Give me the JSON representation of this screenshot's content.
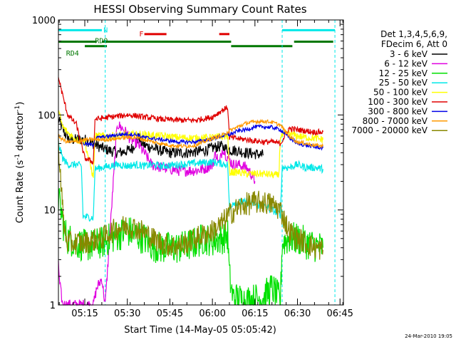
{
  "chart_data": {
    "type": "line",
    "title": "HESSI Observing Summary Count Rates",
    "xlabel": "Start Time (14-May-05 05:05:42)",
    "ylabel": "Count Rate (s⁻¹ detector⁻¹)",
    "ylabel_main": "Count Rate (s",
    "ylabel_sup1": "-1",
    "ylabel_mid": " detector",
    "ylabel_sup2": "-1",
    "ylabel_end": ")",
    "y_scale": "log",
    "ylim": [
      1,
      1000
    ],
    "xlim": [
      5.095,
      6.77
    ],
    "x_ticks": [
      {
        "t": 5.25,
        "label": "05:15"
      },
      {
        "t": 5.5,
        "label": "05:30"
      },
      {
        "t": 5.75,
        "label": "05:45"
      },
      {
        "t": 6.0,
        "label": "06:00"
      },
      {
        "t": 6.25,
        "label": "06:15"
      },
      {
        "t": 6.5,
        "label": "06:30"
      },
      {
        "t": 6.75,
        "label": "06:45"
      }
    ],
    "y_ticks": [
      {
        "v": 1,
        "label": "1"
      },
      {
        "v": 10,
        "label": "10"
      },
      {
        "v": 100,
        "label": "100"
      },
      {
        "v": 1000,
        "label": "1000"
      }
    ],
    "legend": {
      "header1": "Det 1,3,4,5,6,9,",
      "header2": "FDecim 6, Att 0",
      "placement": "right"
    },
    "series": [
      {
        "name": "3 - 6 keV",
        "color": "#000000",
        "values": [
          [
            5.095,
            90
          ],
          [
            5.13,
            65
          ],
          [
            5.16,
            55
          ],
          [
            5.2,
            55
          ],
          [
            5.25,
            55
          ],
          [
            5.3,
            50
          ],
          [
            5.35,
            45
          ],
          [
            5.4,
            42
          ],
          [
            5.45,
            40
          ],
          [
            5.5,
            42
          ],
          [
            5.53,
            45
          ],
          [
            5.55,
            52
          ],
          [
            5.57,
            58
          ],
          [
            5.58,
            52
          ],
          [
            5.6,
            48
          ],
          [
            5.65,
            45
          ],
          [
            5.7,
            42
          ],
          [
            5.75,
            40
          ],
          [
            5.8,
            40
          ],
          [
            5.85,
            40
          ],
          [
            5.9,
            41
          ],
          [
            5.95,
            42
          ],
          [
            6.0,
            45
          ],
          [
            6.05,
            47
          ],
          [
            6.07,
            45
          ],
          [
            6.1,
            43
          ],
          [
            6.15,
            42
          ],
          [
            6.2,
            40
          ],
          [
            6.25,
            39
          ],
          [
            6.3,
            38
          ]
        ]
      },
      {
        "name": "6 - 12 keV",
        "color": "#e000e0",
        "values": [
          [
            5.095,
            3
          ],
          [
            5.1,
            1.8
          ],
          [
            5.12,
            1
          ],
          [
            5.3,
            1
          ],
          [
            5.32,
            1.5
          ],
          [
            5.35,
            1.9
          ],
          [
            5.37,
            1
          ],
          [
            5.44,
            80
          ],
          [
            5.48,
            70
          ],
          [
            5.52,
            55
          ],
          [
            5.56,
            50
          ],
          [
            5.6,
            40
          ],
          [
            5.62,
            35
          ],
          [
            5.64,
            30
          ],
          [
            5.7,
            28
          ],
          [
            5.8,
            26
          ],
          [
            5.9,
            26
          ],
          [
            5.95,
            27
          ],
          [
            6.0,
            30
          ],
          [
            6.02,
            40
          ],
          [
            6.04,
            30
          ],
          [
            6.06,
            45
          ],
          [
            6.08,
            38
          ],
          [
            6.12,
            30
          ],
          [
            6.15,
            30
          ],
          [
            6.2,
            28
          ],
          [
            6.22,
            25
          ],
          [
            6.24,
            22
          ],
          [
            6.25,
            20
          ]
        ]
      },
      {
        "name": "12 - 25 keV",
        "color": "#00e000",
        "values": [
          [
            5.095,
            13
          ],
          [
            5.11,
            10
          ],
          [
            5.13,
            6
          ],
          [
            5.15,
            5
          ],
          [
            5.2,
            4.5
          ],
          [
            5.25,
            4.2
          ],
          [
            5.3,
            4.3
          ],
          [
            5.35,
            4.5
          ],
          [
            5.4,
            5
          ],
          [
            5.45,
            5.5
          ],
          [
            5.5,
            6
          ],
          [
            5.55,
            5.5
          ],
          [
            5.6,
            5
          ],
          [
            5.65,
            4.2
          ],
          [
            5.7,
            4
          ],
          [
            5.75,
            4
          ],
          [
            5.8,
            4
          ],
          [
            5.85,
            4.2
          ],
          [
            5.9,
            4.5
          ],
          [
            5.95,
            5
          ],
          [
            6.0,
            4.8
          ],
          [
            6.05,
            5
          ],
          [
            6.09,
            5.5
          ],
          [
            6.1,
            2
          ],
          [
            6.12,
            1.2
          ],
          [
            6.2,
            1.1
          ],
          [
            6.3,
            1.2
          ],
          [
            6.35,
            1.5
          ],
          [
            6.4,
            1.1
          ],
          [
            6.41,
            4.5
          ],
          [
            6.45,
            5
          ],
          [
            6.5,
            5
          ],
          [
            6.55,
            4.5
          ],
          [
            6.6,
            4.2
          ],
          [
            6.65,
            4
          ]
        ]
      },
      {
        "name": "25 - 50 keV",
        "color": "#00e8e8",
        "values": [
          [
            5.095,
            50
          ],
          [
            5.12,
            35
          ],
          [
            5.15,
            30
          ],
          [
            5.2,
            30
          ],
          [
            5.23,
            29
          ],
          [
            5.24,
            8.5
          ],
          [
            5.3,
            8.3
          ],
          [
            5.31,
            27
          ],
          [
            5.35,
            28
          ],
          [
            5.4,
            29
          ],
          [
            5.45,
            30
          ],
          [
            5.5,
            29
          ],
          [
            5.55,
            30
          ],
          [
            5.6,
            29
          ],
          [
            5.65,
            30
          ],
          [
            5.7,
            29
          ],
          [
            5.8,
            30
          ],
          [
            5.9,
            31
          ],
          [
            6.0,
            32
          ],
          [
            6.09,
            30
          ],
          [
            6.1,
            10
          ],
          [
            6.12,
            12
          ],
          [
            6.2,
            12
          ],
          [
            6.3,
            11
          ],
          [
            6.35,
            10
          ],
          [
            6.4,
            9
          ],
          [
            6.41,
            28
          ],
          [
            6.45,
            28
          ],
          [
            6.5,
            30
          ],
          [
            6.55,
            28
          ],
          [
            6.6,
            28
          ],
          [
            6.65,
            27
          ]
        ]
      },
      {
        "name": "50 - 100 keV",
        "color": "#ffff00",
        "values": [
          [
            5.095,
            110
          ],
          [
            5.12,
            75
          ],
          [
            5.15,
            65
          ],
          [
            5.2,
            55
          ],
          [
            5.25,
            52
          ],
          [
            5.3,
            22
          ],
          [
            5.31,
            60
          ],
          [
            5.4,
            60
          ],
          [
            5.5,
            62
          ],
          [
            5.6,
            62
          ],
          [
            5.7,
            60
          ],
          [
            5.8,
            58
          ],
          [
            5.9,
            57
          ],
          [
            6.0,
            58
          ],
          [
            6.09,
            60
          ],
          [
            6.1,
            25
          ],
          [
            6.15,
            25
          ],
          [
            6.2,
            24
          ],
          [
            6.3,
            24
          ],
          [
            6.39,
            23
          ],
          [
            6.4,
            60
          ],
          [
            6.45,
            64
          ],
          [
            6.5,
            60
          ],
          [
            6.55,
            58
          ],
          [
            6.6,
            57
          ],
          [
            6.65,
            55
          ]
        ]
      },
      {
        "name": "100 - 300 keV",
        "color": "#e00000",
        "values": [
          [
            5.095,
            250
          ],
          [
            5.12,
            160
          ],
          [
            5.15,
            100
          ],
          [
            5.2,
            80
          ],
          [
            5.25,
            35
          ],
          [
            5.3,
            32
          ],
          [
            5.31,
            90
          ],
          [
            5.4,
            95
          ],
          [
            5.5,
            100
          ],
          [
            5.55,
            98
          ],
          [
            5.6,
            95
          ],
          [
            5.7,
            90
          ],
          [
            5.8,
            88
          ],
          [
            5.9,
            88
          ],
          [
            6.0,
            95
          ],
          [
            6.05,
            110
          ],
          [
            6.09,
            120
          ],
          [
            6.1,
            58
          ],
          [
            6.2,
            55
          ],
          [
            6.3,
            52
          ],
          [
            6.35,
            52
          ],
          [
            6.4,
            50
          ],
          [
            6.45,
            72
          ],
          [
            6.5,
            70
          ],
          [
            6.55,
            68
          ],
          [
            6.6,
            66
          ],
          [
            6.65,
            66
          ]
        ]
      },
      {
        "name": "300 - 800 keV",
        "color": "#0000e8",
        "values": [
          [
            5.24,
            50
          ],
          [
            5.3,
            48
          ],
          [
            5.31,
            57
          ],
          [
            5.4,
            60
          ],
          [
            5.45,
            62
          ],
          [
            5.5,
            63
          ],
          [
            5.55,
            62
          ],
          [
            5.6,
            58
          ],
          [
            5.7,
            55
          ],
          [
            5.8,
            52
          ],
          [
            5.9,
            52
          ],
          [
            6.0,
            56
          ],
          [
            6.05,
            60
          ],
          [
            6.1,
            62
          ],
          [
            6.15,
            68
          ],
          [
            6.2,
            70
          ],
          [
            6.25,
            75
          ],
          [
            6.3,
            75
          ],
          [
            6.35,
            74
          ],
          [
            6.4,
            70
          ],
          [
            6.45,
            58
          ],
          [
            6.5,
            50
          ],
          [
            6.55,
            48
          ],
          [
            6.6,
            46
          ],
          [
            6.65,
            45
          ]
        ]
      },
      {
        "name": "800 - 7000 keV",
        "color": "#ff9900",
        "values": [
          [
            5.095,
            60
          ],
          [
            5.12,
            55
          ],
          [
            5.15,
            52
          ],
          [
            5.2,
            52
          ],
          [
            5.25,
            55
          ],
          [
            5.3,
            55
          ],
          [
            5.35,
            55
          ],
          [
            5.4,
            55
          ],
          [
            5.45,
            57
          ],
          [
            5.5,
            58
          ],
          [
            5.55,
            58
          ],
          [
            5.6,
            55
          ],
          [
            5.65,
            52
          ],
          [
            5.7,
            50
          ],
          [
            5.75,
            48
          ],
          [
            5.8,
            47
          ],
          [
            5.85,
            47
          ],
          [
            5.9,
            48
          ],
          [
            5.95,
            52
          ],
          [
            6.0,
            57
          ],
          [
            6.05,
            60
          ],
          [
            6.1,
            68
          ],
          [
            6.15,
            75
          ],
          [
            6.2,
            82
          ],
          [
            6.25,
            85
          ],
          [
            6.3,
            86
          ],
          [
            6.35,
            84
          ],
          [
            6.4,
            78
          ],
          [
            6.45,
            60
          ],
          [
            6.5,
            52
          ],
          [
            6.55,
            50
          ],
          [
            6.6,
            48
          ],
          [
            6.65,
            47
          ]
        ]
      },
      {
        "name": "7000 - 20000 keV",
        "color": "#888800",
        "values": [
          [
            5.095,
            50
          ],
          [
            5.11,
            20
          ],
          [
            5.12,
            10
          ],
          [
            5.13,
            6
          ],
          [
            5.15,
            4.5
          ],
          [
            5.2,
            4.5
          ],
          [
            5.25,
            4.5
          ],
          [
            5.3,
            4.8
          ],
          [
            5.35,
            5
          ],
          [
            5.4,
            5.8
          ],
          [
            5.45,
            6.5
          ],
          [
            5.5,
            6.8
          ],
          [
            5.55,
            6.5
          ],
          [
            5.6,
            5.8
          ],
          [
            5.65,
            5
          ],
          [
            5.7,
            4.5
          ],
          [
            5.75,
            4.2
          ],
          [
            5.8,
            4.2
          ],
          [
            5.85,
            4.5
          ],
          [
            5.9,
            5
          ],
          [
            5.95,
            5.5
          ],
          [
            6.0,
            6
          ],
          [
            6.05,
            7
          ],
          [
            6.1,
            9
          ],
          [
            6.15,
            10.5
          ],
          [
            6.2,
            11.5
          ],
          [
            6.25,
            12
          ],
          [
            6.3,
            12
          ],
          [
            6.35,
            11.5
          ],
          [
            6.4,
            10
          ],
          [
            6.45,
            6
          ],
          [
            6.5,
            5
          ],
          [
            6.55,
            4.5
          ],
          [
            6.6,
            4
          ],
          [
            6.65,
            3.8
          ]
        ]
      }
    ],
    "annotations": [
      {
        "label": "N",
        "color": "#00e8e8",
        "y_val": 780,
        "segments": [
          [
            5.095,
            5.35
          ],
          [
            6.41,
            6.72
          ]
        ],
        "label_t": 5.36
      },
      {
        "label": "F",
        "color": "#e00000",
        "y_val": 710,
        "segments": [
          [
            5.6,
            5.73
          ],
          [
            6.04,
            6.1
          ]
        ],
        "label_t": 5.57
      },
      {
        "label": "RD0",
        "color": "#007700",
        "y_val": 590,
        "segments": [
          [
            5.095,
            5.32
          ],
          [
            5.35,
            6.11
          ],
          [
            6.48,
            6.71
          ]
        ],
        "label_t": 5.31
      },
      {
        "label": "RD4",
        "color": "#007700",
        "y_val": 530,
        "segments": [
          [
            5.25,
            5.38
          ],
          [
            6.11,
            6.47
          ]
        ],
        "label_t": 5.14
      }
    ],
    "vlines": [
      {
        "t": 5.37,
        "color": "#00e8e8"
      },
      {
        "t": 6.41,
        "color": "#00e8e8"
      },
      {
        "t": 6.72,
        "color": "#00e8e8"
      }
    ],
    "timestamp": "24-Mar-2010 19:05"
  }
}
